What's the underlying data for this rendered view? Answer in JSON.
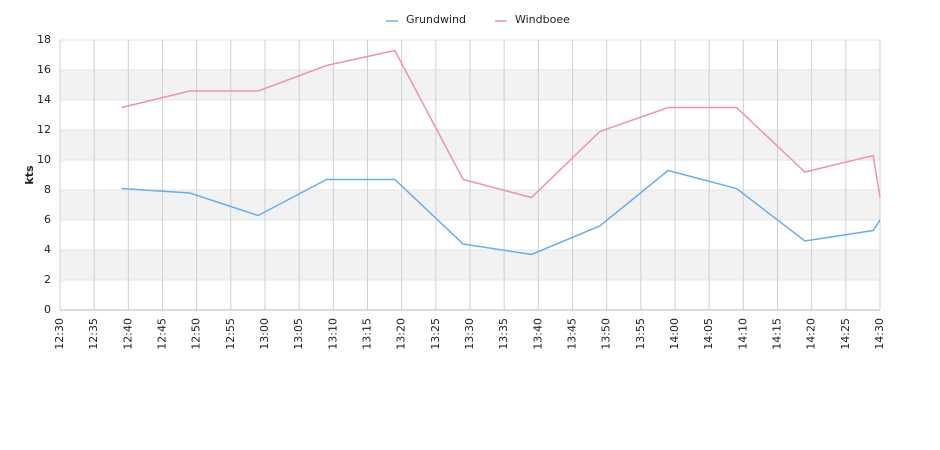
{
  "chart_data": {
    "type": "line",
    "y_label": "kts",
    "x": [
      "12:39",
      "12:49",
      "12:59",
      "13:09",
      "13:19",
      "13:29",
      "13:39",
      "13:49",
      "13:59",
      "14:09",
      "14:19",
      "14:29",
      "14:30"
    ],
    "series": [
      {
        "name": "Grundwind",
        "color": "#6aaee8",
        "values": [
          8.1,
          7.8,
          6.3,
          8.7,
          8.7,
          4.4,
          3.7,
          5.6,
          9.3,
          8.1,
          4.6,
          5.3,
          6.0
        ]
      },
      {
        "name": "Windboee",
        "color": "#f08fc0",
        "values": [
          13.5,
          14.6,
          14.6,
          16.3,
          17.3,
          8.7,
          7.5,
          11.9,
          13.5,
          13.5,
          9.2,
          10.3,
          7.5
        ]
      }
    ],
    "xlim": [
      "12:30",
      "14:30"
    ],
    "xticks": [
      "12:30",
      "12:35",
      "12:40",
      "12:45",
      "12:50",
      "12:55",
      "13:00",
      "13:05",
      "13:10",
      "13:15",
      "13:20",
      "13:25",
      "13:30",
      "13:35",
      "13:40",
      "13:45",
      "13:50",
      "13:55",
      "14:00",
      "14:05",
      "14:10",
      "14:15",
      "14:20",
      "14:25",
      "14:30"
    ],
    "ylim": [
      0,
      18
    ],
    "yticks": [
      0,
      2,
      4,
      6,
      8,
      10,
      12,
      14,
      16,
      18
    ],
    "grid": true
  }
}
